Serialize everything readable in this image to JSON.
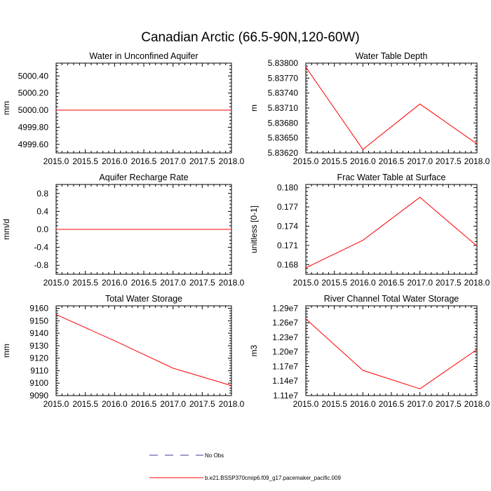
{
  "figure": {
    "title": "Canadian Arctic (66.5-90N,120-60W)",
    "line_color": "#ff0000",
    "obs_color": "#3b3b9a"
  },
  "legend": {
    "items": [
      {
        "label": "No Obs",
        "style": "dashed",
        "color": "#3b3b9a"
      },
      {
        "label": "b.e21.BSSP370cmip6.f09_g17.pacemaker_pacific.009",
        "style": "solid",
        "color": "#ff0000"
      }
    ]
  },
  "chart_data": [
    {
      "type": "line",
      "title": "Water in Unconfined Aquifer",
      "ylabel": "mm",
      "xlim": [
        2015.0,
        2018.0
      ],
      "ylim": [
        4999.5,
        5000.55
      ],
      "xticks": [
        "2015.0",
        "2015.5",
        "2016.0",
        "2016.5",
        "2017.0",
        "2017.5",
        "2018.0"
      ],
      "yticks": [
        "5000.40",
        "5000.20",
        "5000.00",
        "4999.80",
        "4999.60"
      ],
      "series": [
        {
          "x": [
            2015.0,
            2016.0,
            2017.0,
            2018.0
          ],
          "values": [
            5000.0,
            5000.0,
            5000.0,
            5000.0
          ]
        }
      ]
    },
    {
      "type": "line",
      "title": "Water Table Depth",
      "ylabel": "m",
      "xlim": [
        2015.0,
        2018.0
      ],
      "ylim": [
        5.8362,
        5.838
      ],
      "xticks": [
        "2015.0",
        "2015.5",
        "2016.0",
        "2016.5",
        "2017.0",
        "2017.5",
        "2018.0"
      ],
      "yticks": [
        "5.83800",
        "5.83770",
        "5.83740",
        "5.83710",
        "5.83680",
        "5.83650",
        "5.83620"
      ],
      "series": [
        {
          "x": [
            2015.0,
            2016.0,
            2017.0,
            2018.0
          ],
          "values": [
            5.83792,
            5.83627,
            5.83718,
            5.83638
          ]
        }
      ]
    },
    {
      "type": "line",
      "title": "Aquifer Recharge Rate",
      "ylabel": "mm/d",
      "xlim": [
        2015.0,
        2018.0
      ],
      "ylim": [
        -1.0,
        1.0
      ],
      "xticks": [
        "2015.0",
        "2015.5",
        "2016.0",
        "2016.5",
        "2017.0",
        "2017.5",
        "2018.0"
      ],
      "yticks": [
        "0.8",
        "0.4",
        "0.0",
        "-0.4",
        "-0.8"
      ],
      "series": [
        {
          "x": [
            2015.0,
            2016.0,
            2017.0,
            2018.0
          ],
          "values": [
            0.0,
            0.0,
            0.0,
            0.0
          ]
        }
      ]
    },
    {
      "type": "line",
      "title": "Frac Water Table at Surface",
      "ylabel": "unitless [0-1]",
      "xlim": [
        2015.0,
        2018.0
      ],
      "ylim": [
        0.1665,
        0.1805
      ],
      "xticks": [
        "2015.0",
        "2015.5",
        "2016.0",
        "2016.5",
        "2017.0",
        "2017.5",
        "2018.0"
      ],
      "yticks": [
        "0.180",
        "0.177",
        "0.174",
        "0.171",
        "0.168"
      ],
      "series": [
        {
          "x": [
            2015.0,
            2016.0,
            2017.0,
            2018.0
          ],
          "values": [
            0.1675,
            0.1718,
            0.1785,
            0.1709
          ]
        }
      ]
    },
    {
      "type": "line",
      "title": "Total Water Storage",
      "ylabel": "mm",
      "xlim": [
        2015.0,
        2018.0
      ],
      "ylim": [
        9090,
        9162
      ],
      "xticks": [
        "2015.0",
        "2015.5",
        "2016.0",
        "2016.5",
        "2017.0",
        "2017.5",
        "2018.0"
      ],
      "yticks": [
        "9160",
        "9150",
        "9140",
        "9130",
        "9120",
        "9110",
        "9100",
        "9090"
      ],
      "series": [
        {
          "x": [
            2015.0,
            2016.0,
            2017.0,
            2018.0
          ],
          "values": [
            9155,
            9134,
            9112,
            9098
          ]
        }
      ]
    },
    {
      "type": "line",
      "title": "River Channel Total Water Storage",
      "ylabel": "m3",
      "xlim": [
        2015.0,
        2018.0
      ],
      "ylim": [
        11100000,
        12950000
      ],
      "xticks": [
        "2015.0",
        "2015.5",
        "2016.0",
        "2016.5",
        "2017.0",
        "2017.5",
        "2018.0"
      ],
      "yticks": [
        "1.29e7",
        "1.26e7",
        "1.23e7",
        "1.20e7",
        "1.17e7",
        "1.14e7",
        "1.11e7"
      ],
      "series": [
        {
          "x": [
            2015.0,
            2016.0,
            2017.0,
            2018.0
          ],
          "values": [
            12680000,
            11620000,
            11240000,
            12050000
          ]
        }
      ]
    }
  ]
}
